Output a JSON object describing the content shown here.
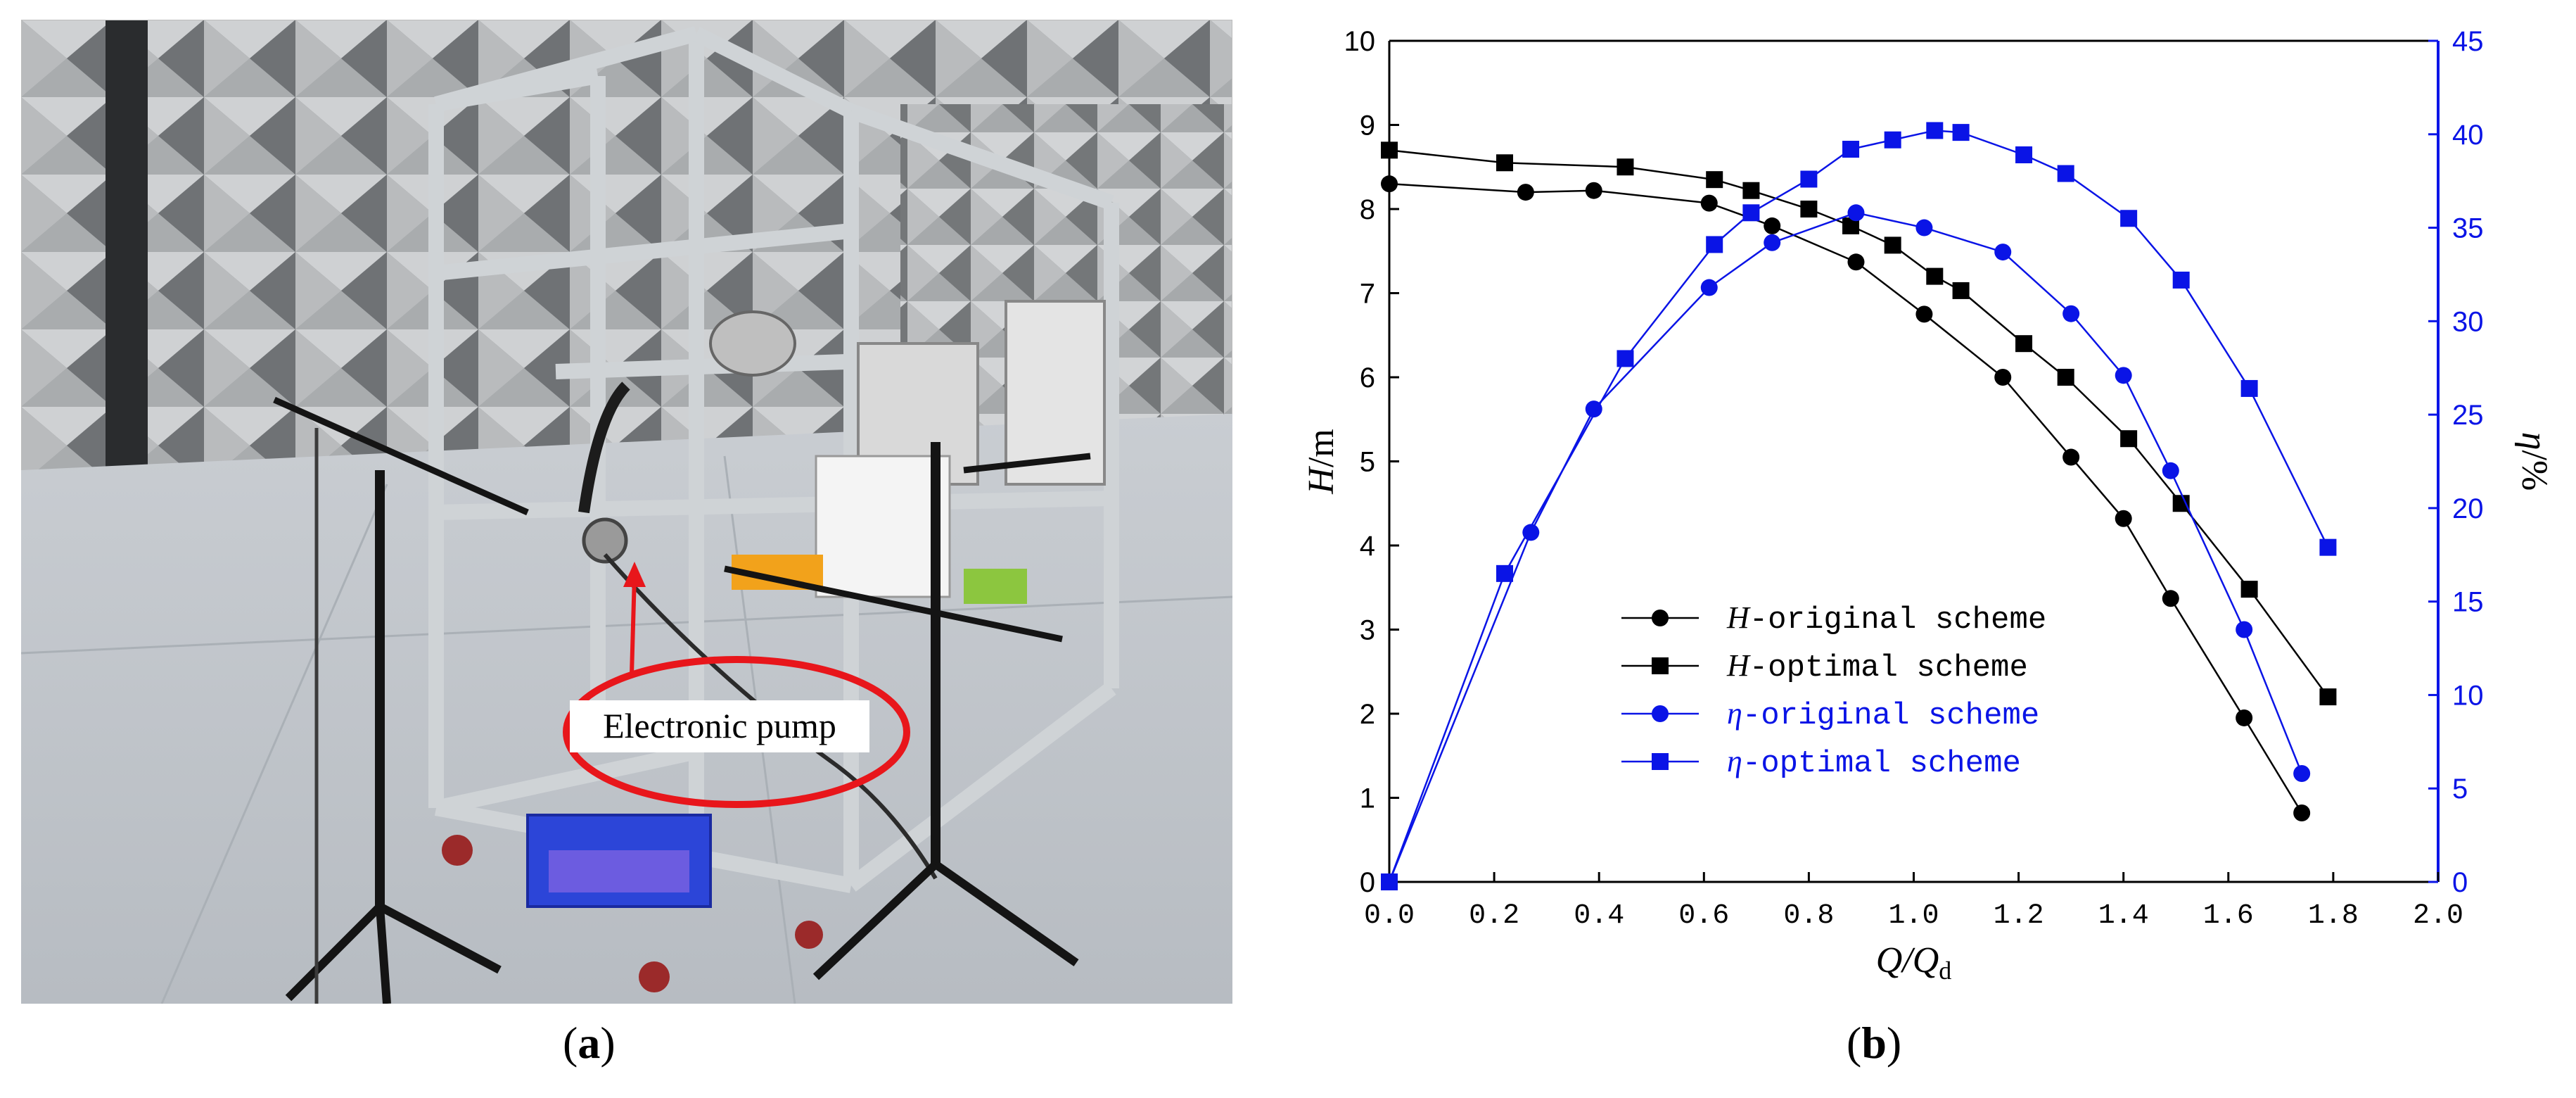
{
  "panels": {
    "a": {
      "caption_open": "(",
      "caption_letter": "a",
      "caption_close": ")",
      "callout": "Electronic pump"
    },
    "b": {
      "caption_open": "(",
      "caption_letter": "b",
      "caption_close": ")"
    }
  },
  "colors": {
    "black_series": "#000000",
    "blue_series": "#0a14e6",
    "callout_red": "#e8161b"
  },
  "chart_data": {
    "type": "line",
    "xlabel": {
      "main": "Q/Q",
      "sub": "d"
    },
    "ylabel_left": {
      "main": "H",
      "unit": "/m"
    },
    "ylabel_right": {
      "main": "η",
      "unit": "/%"
    },
    "xlim": [
      0,
      2.0
    ],
    "ylim_left": [
      0,
      10
    ],
    "ylim_right": [
      0,
      45
    ],
    "x_ticks": [
      "0.0",
      "0.2",
      "0.4",
      "0.6",
      "0.8",
      "1.0",
      "1.2",
      "1.4",
      "1.6",
      "1.8",
      "2.0"
    ],
    "y_left_ticks": [
      "0",
      "1",
      "2",
      "3",
      "4",
      "5",
      "6",
      "7",
      "8",
      "9",
      "10"
    ],
    "y_right_ticks": [
      "0",
      "5",
      "10",
      "15",
      "20",
      "25",
      "30",
      "35",
      "40",
      "45"
    ],
    "grid": false,
    "legend_position": "lower-left",
    "series": [
      {
        "name": "H-original scheme",
        "legend_prefix": "H",
        "legend_rest": "-original scheme",
        "axis": "left",
        "marker": "circle",
        "color": "#000000",
        "x": [
          0.0,
          0.26,
          0.39,
          0.61,
          0.73,
          0.89,
          1.02,
          1.17,
          1.3,
          1.4,
          1.49,
          1.63,
          1.74
        ],
        "y": [
          8.3,
          8.2,
          8.22,
          8.07,
          7.8,
          7.37,
          6.75,
          6.0,
          5.05,
          4.32,
          3.37,
          1.95,
          0.82
        ]
      },
      {
        "name": "H-optimal scheme",
        "legend_prefix": "H",
        "legend_rest": "-optimal scheme",
        "axis": "left",
        "marker": "square",
        "color": "#000000",
        "x": [
          0.0,
          0.22,
          0.45,
          0.62,
          0.69,
          0.8,
          0.88,
          0.96,
          1.04,
          1.09,
          1.21,
          1.29,
          1.41,
          1.51,
          1.64,
          1.79
        ],
        "y": [
          8.7,
          8.55,
          8.5,
          8.35,
          8.22,
          8.0,
          7.8,
          7.57,
          7.2,
          7.03,
          6.4,
          6.0,
          5.27,
          4.5,
          3.48,
          2.2
        ]
      },
      {
        "name": "η-original scheme",
        "legend_prefix": "η",
        "legend_rest": "-original scheme",
        "axis": "right",
        "marker": "circle",
        "color": "#0a14e6",
        "x": [
          0.0,
          0.27,
          0.39,
          0.61,
          0.73,
          0.89,
          1.02,
          1.17,
          1.3,
          1.4,
          1.49,
          1.63,
          1.74
        ],
        "y": [
          0,
          18.7,
          25.3,
          31.8,
          34.2,
          35.8,
          35.0,
          33.7,
          30.4,
          27.1,
          22.0,
          13.5,
          5.8
        ]
      },
      {
        "name": "η-optimal scheme",
        "legend_prefix": "η",
        "legend_rest": "-optimal scheme",
        "axis": "right",
        "marker": "square",
        "color": "#0a14e6",
        "x": [
          0.0,
          0.22,
          0.45,
          0.62,
          0.69,
          0.8,
          0.88,
          0.96,
          1.04,
          1.09,
          1.21,
          1.29,
          1.41,
          1.51,
          1.64,
          1.79
        ],
        "y": [
          0,
          16.5,
          28.0,
          34.1,
          35.8,
          37.6,
          39.2,
          39.7,
          40.2,
          40.1,
          38.9,
          37.9,
          35.5,
          32.2,
          26.4,
          17.9
        ]
      }
    ]
  }
}
